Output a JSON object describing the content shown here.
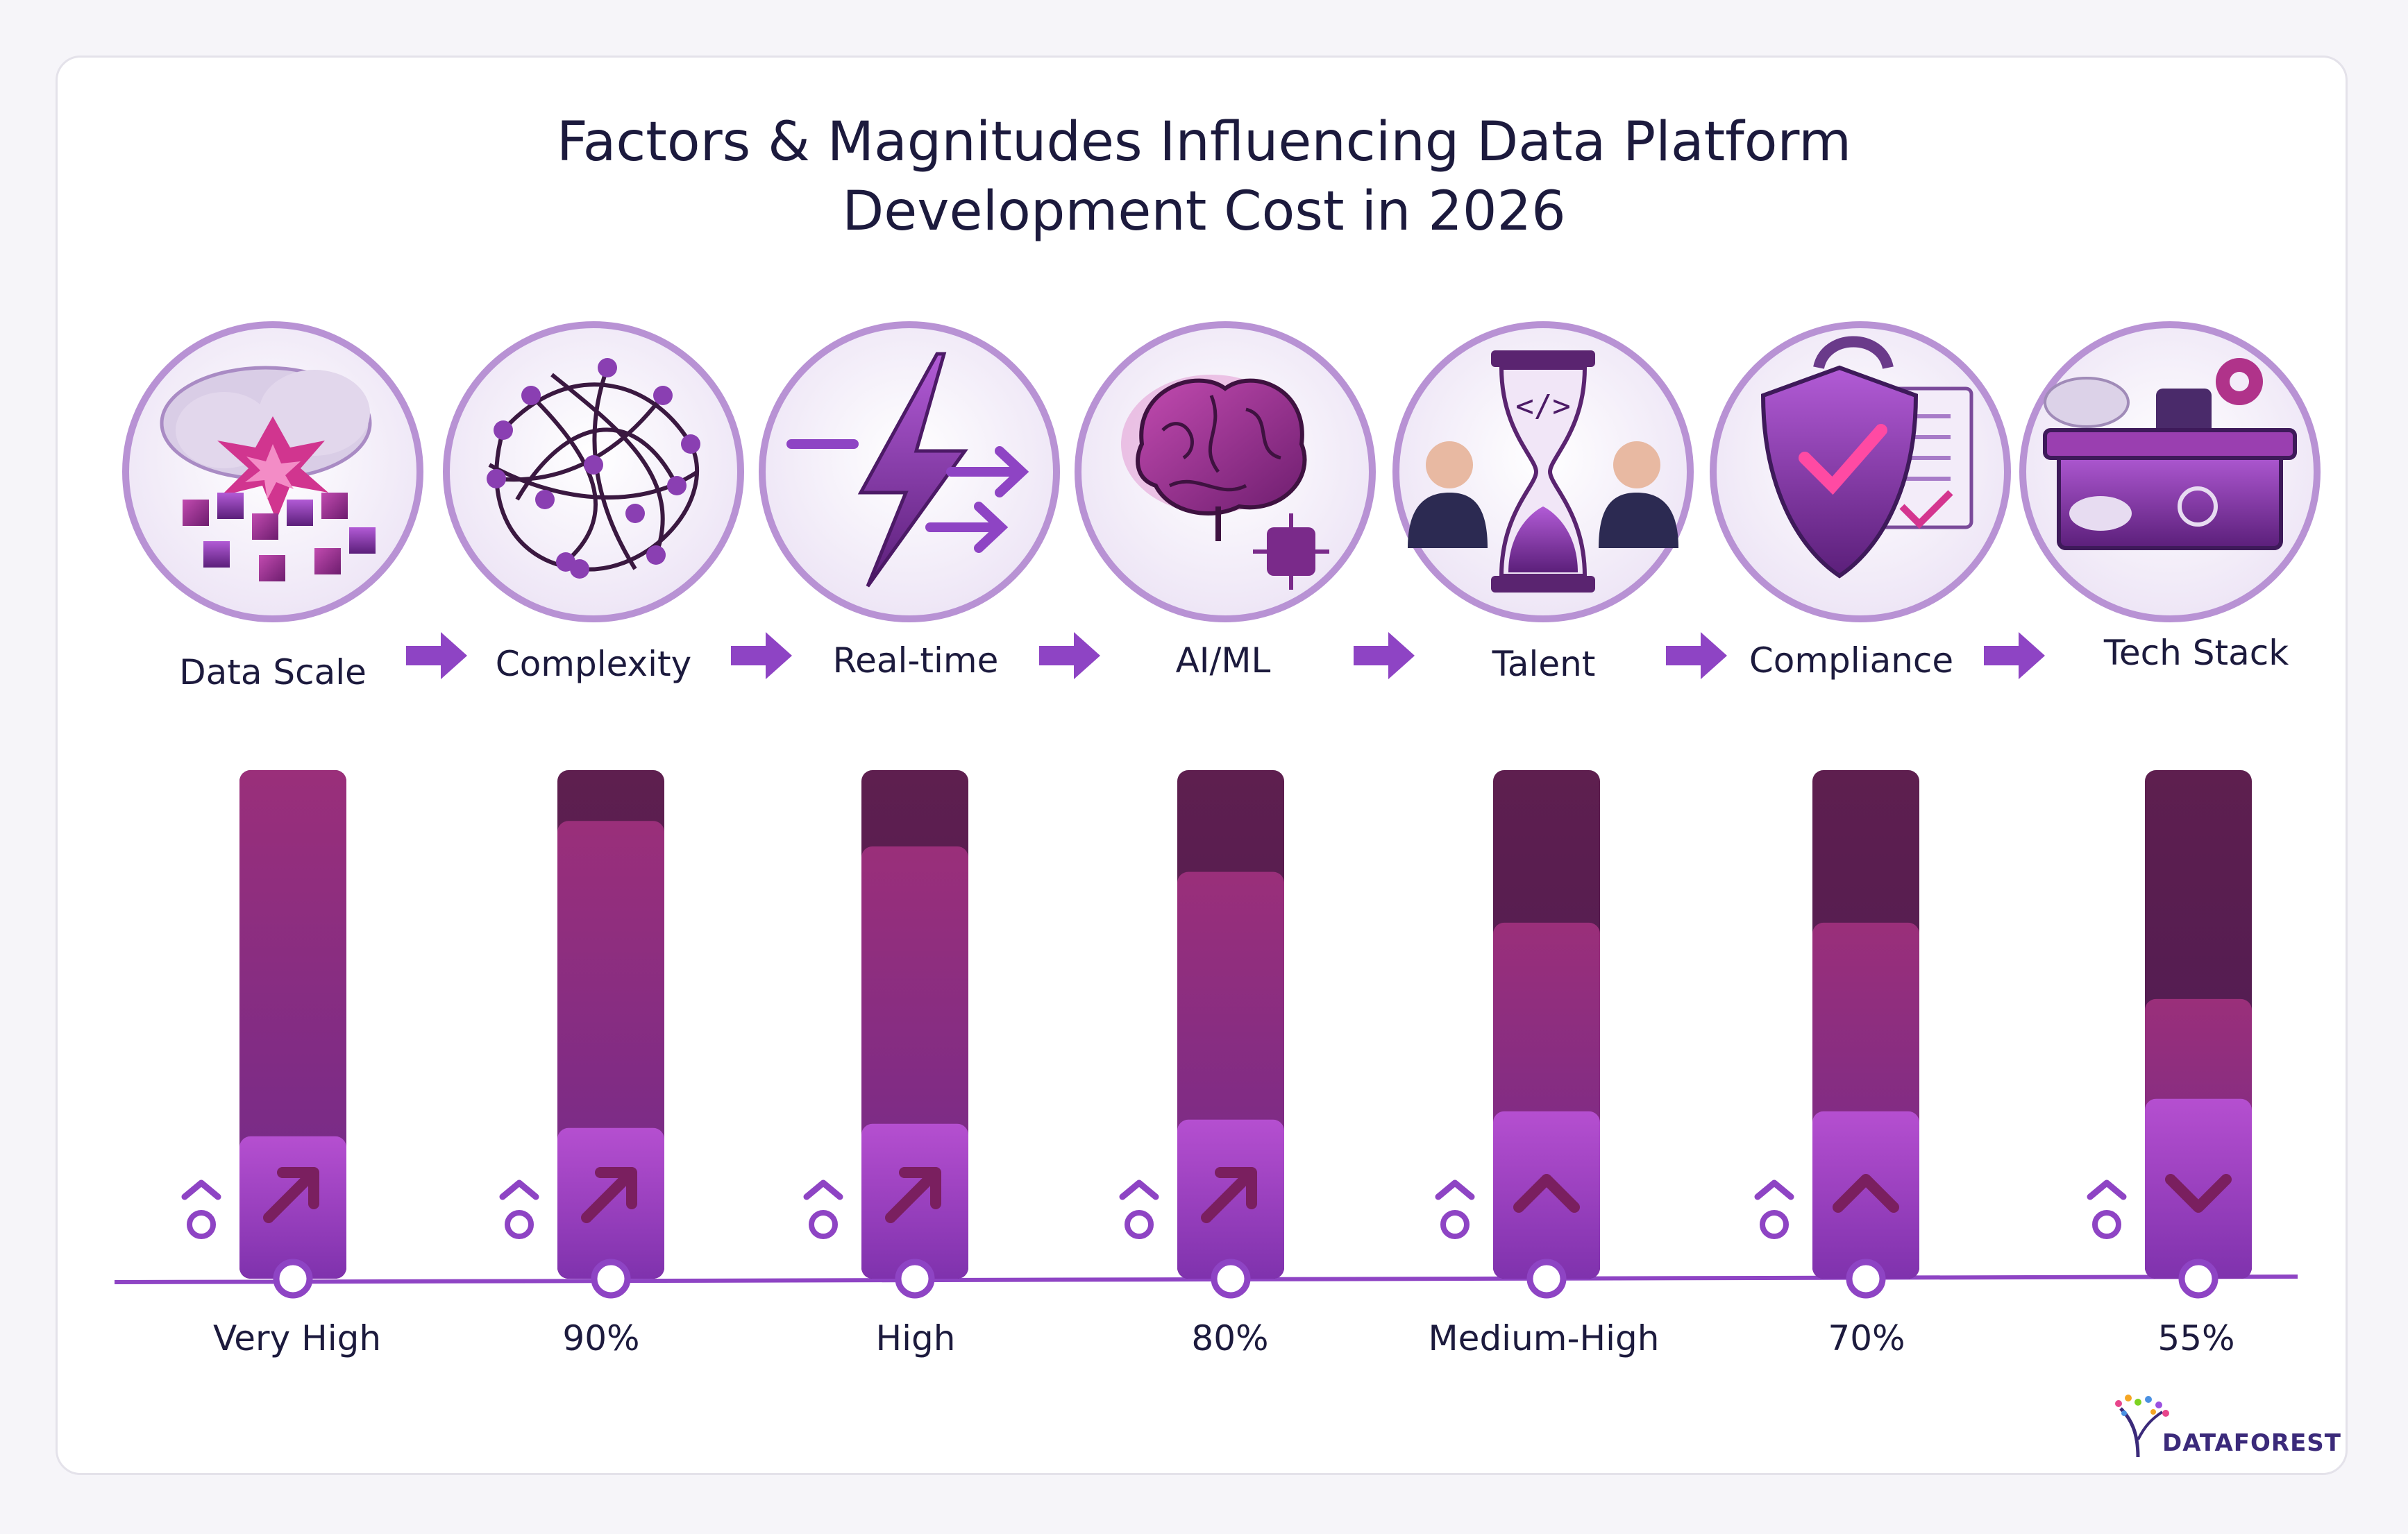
{
  "title_lines": [
    "Factors & Magnitudes Influencing Data Platform",
    "Development Cost in 2026"
  ],
  "factors": [
    {
      "label": "Data Scale",
      "icon": "data-cloud-explosion-icon"
    },
    {
      "label": "Complexity",
      "icon": "tangled-network-icon"
    },
    {
      "label": "Real-time",
      "icon": "lightning-bolt-icon"
    },
    {
      "label": "AI/ML",
      "icon": "brain-chip-icon"
    },
    {
      "label": "Talent",
      "icon": "hourglass-people-icon"
    },
    {
      "label": "Compliance",
      "icon": "shield-check-icon"
    },
    {
      "label": "Tech Stack",
      "icon": "toolbox-icon"
    }
  ],
  "flow_arrow_icon": "right-arrow-icon",
  "chart_data": {
    "type": "bar",
    "categories": [
      "Data Scale",
      "Complexity",
      "Real-time",
      "AI/ML",
      "Talent",
      "Compliance",
      "Tech Stack"
    ],
    "value_labels": [
      "Very High",
      "90%",
      "High",
      "80%",
      "Medium-High",
      "70%",
      "55%"
    ],
    "values": [
      100,
      90,
      85,
      80,
      70,
      70,
      55
    ],
    "trend_icons": [
      "arrow-up-right-icon",
      "arrow-up-right-icon",
      "arrow-up-right-icon",
      "arrow-up-right-icon",
      "chevron-up-icon",
      "chevron-up-icon",
      "chevron-down-icon"
    ],
    "ylim": [
      0,
      100
    ],
    "grid": false,
    "legend": false
  },
  "colors": {
    "bar_dark": "#4a1a4f",
    "bar_mid": "#7a2a78",
    "bar_light": "#a040b8",
    "accent_purple": "#8e44c4",
    "title": "#1c1a3d"
  },
  "logo": {
    "text": "DATAFOREST"
  }
}
